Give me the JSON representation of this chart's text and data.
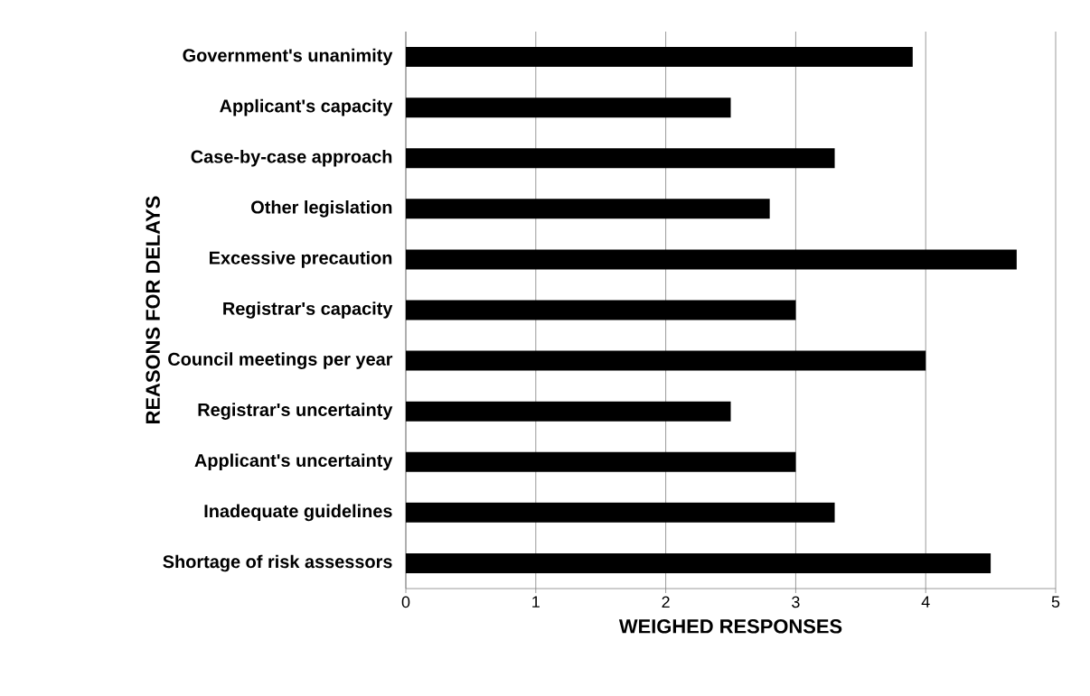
{
  "chart_data": {
    "type": "bar",
    "orientation": "horizontal",
    "categories": [
      "Government's unanimity",
      "Applicant's capacity",
      "Case-by-case approach",
      "Other legislation",
      "Excessive precaution",
      "Registrar's capacity",
      "Council meetings per year",
      "Registrar's uncertainty",
      "Applicant's uncertainty",
      "Inadequate guidelines",
      "Shortage of risk assessors"
    ],
    "values": [
      3.9,
      2.5,
      3.3,
      2.8,
      4.7,
      3.0,
      4.0,
      2.5,
      3.0,
      3.3,
      4.5
    ],
    "color": "#000000",
    "xlabel": "WEIGHED RESPONSES",
    "ylabel": "REASONS FOR DELAYS",
    "xlim": [
      0,
      5
    ],
    "xticks": [
      0,
      1,
      2,
      3,
      4,
      5
    ],
    "grid": "x"
  }
}
